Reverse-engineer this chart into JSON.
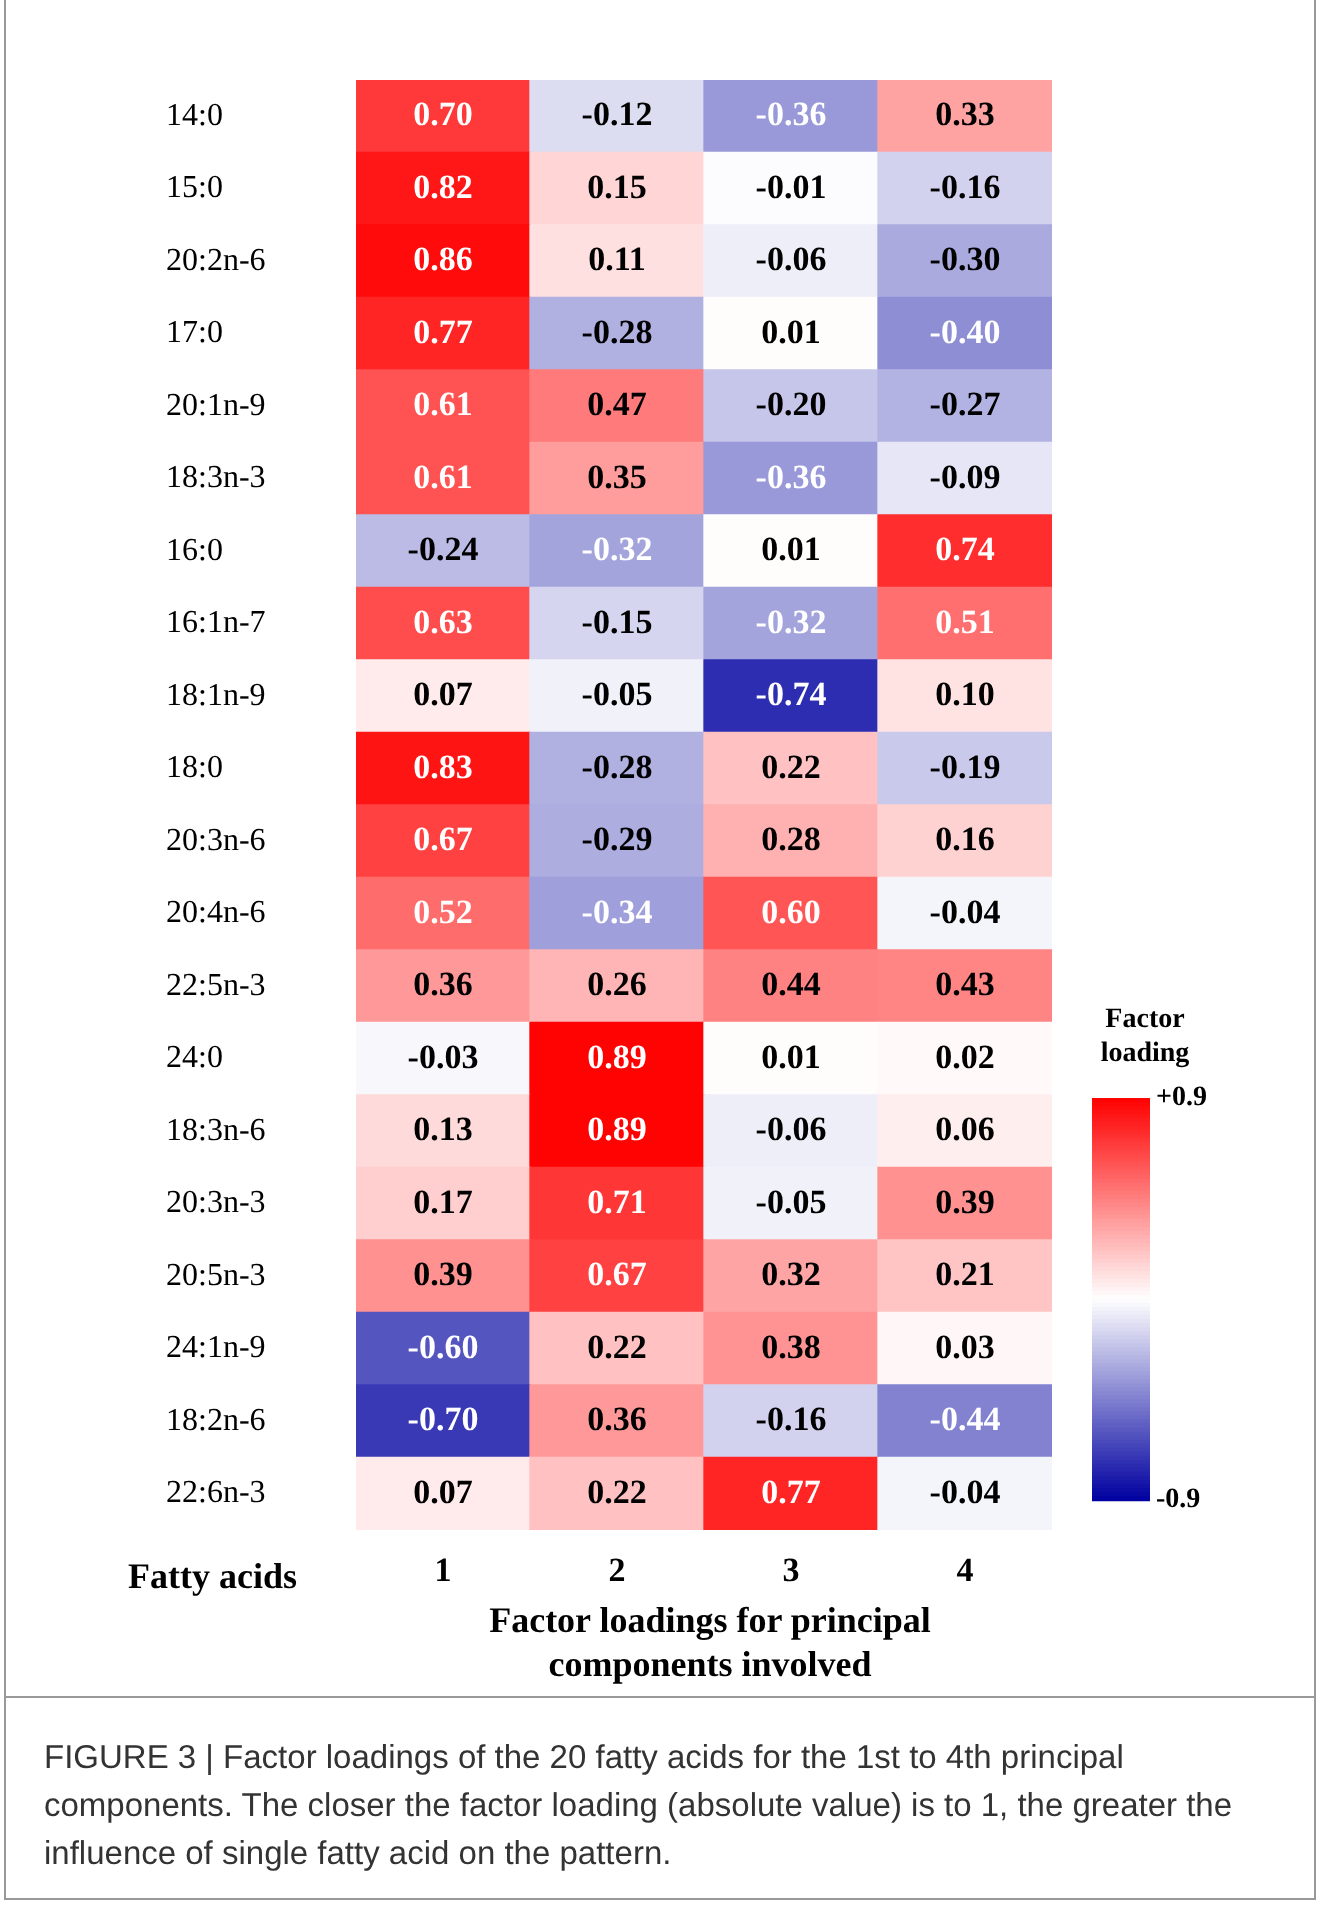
{
  "chart_data": {
    "type": "heatmap",
    "categories": [
      "1",
      "2",
      "3",
      "4"
    ],
    "y_categories": [
      "14:0",
      "15:0",
      "20:2n-6",
      "17:0",
      "20:1n-9",
      "18:3n-3",
      "16:0",
      "16:1n-7",
      "18:1n-9",
      "18:0",
      "20:3n-6",
      "20:4n-6",
      "22:5n-3",
      "24:0",
      "18:3n-6",
      "20:3n-3",
      "20:5n-3",
      "24:1n-9",
      "18:2n-6",
      "22:6n-3"
    ],
    "cells": [
      [
        0.7,
        -0.12,
        -0.36,
        0.33
      ],
      [
        0.82,
        0.15,
        -0.01,
        -0.16
      ],
      [
        0.86,
        0.11,
        -0.06,
        -0.3
      ],
      [
        0.77,
        -0.28,
        0.01,
        -0.4
      ],
      [
        0.61,
        0.47,
        -0.2,
        -0.27
      ],
      [
        0.61,
        0.35,
        -0.36,
        -0.09
      ],
      [
        -0.24,
        -0.32,
        0.01,
        0.74
      ],
      [
        0.63,
        -0.15,
        -0.32,
        0.51
      ],
      [
        0.07,
        -0.05,
        -0.74,
        0.1
      ],
      [
        0.83,
        -0.28,
        0.22,
        -0.19
      ],
      [
        0.67,
        -0.29,
        0.28,
        0.16
      ],
      [
        0.52,
        -0.34,
        0.6,
        -0.04
      ],
      [
        0.36,
        0.26,
        0.44,
        0.43
      ],
      [
        -0.03,
        0.89,
        0.01,
        0.02
      ],
      [
        0.13,
        0.89,
        -0.06,
        0.06
      ],
      [
        0.17,
        0.71,
        -0.05,
        0.39
      ],
      [
        0.39,
        0.67,
        0.32,
        0.21
      ],
      [
        -0.6,
        0.22,
        0.38,
        0.03
      ],
      [
        -0.7,
        0.36,
        -0.16,
        -0.44
      ],
      [
        0.07,
        0.22,
        0.77,
        -0.04
      ]
    ],
    "cell_labels": [
      [
        "0.70",
        "-0.12",
        "-0.36",
        "0.33"
      ],
      [
        "0.82",
        "0.15",
        "-0.01",
        "-0.16"
      ],
      [
        "0.86",
        "0.11",
        "-0.06",
        "-0.30"
      ],
      [
        "0.77",
        "-0.28",
        "0.01",
        "-0.40"
      ],
      [
        "0.61",
        "0.47",
        "-0.20",
        "-0.27"
      ],
      [
        "0.61",
        "0.35",
        "-0.36",
        "-0.09"
      ],
      [
        "-0.24",
        "-0.32",
        "0.01",
        "0.74"
      ],
      [
        "0.63",
        "-0.15",
        "-0.32",
        "0.51"
      ],
      [
        "0.07",
        "-0.05",
        "-0.74",
        "0.10"
      ],
      [
        "0.83",
        "-0.28",
        "0.22",
        "-0.19"
      ],
      [
        "0.67",
        "-0.29",
        "0.28",
        "0.16"
      ],
      [
        "0.52",
        "-0.34",
        "0.60",
        "-0.04"
      ],
      [
        "0.36",
        "0.26",
        "0.44",
        "0.43"
      ],
      [
        "-0.03",
        "0.89",
        "0.01",
        "0.02"
      ],
      [
        "0.13",
        "0.89",
        "-0.06",
        "0.06"
      ],
      [
        "0.17",
        "0.71",
        "-0.05",
        "0.39"
      ],
      [
        "0.39",
        "0.67",
        "0.32",
        "0.21"
      ],
      [
        "-0.60",
        "0.22",
        "0.38",
        "0.03"
      ],
      [
        "-0.70",
        "0.36",
        "-0.16",
        "-0.44"
      ],
      [
        "0.07",
        "0.22",
        "0.77",
        "-0.04"
      ]
    ],
    "clim": [
      -0.9,
      0.9
    ],
    "cticks": [
      {
        "value": 0.9,
        "label": "+0.9"
      },
      -0.9
    ],
    "clabel": "Factor loading",
    "xlabel": "Factor loadings for principal components involved",
    "ylabel": "Fatty acids",
    "annotations": [
      "FIGURE 3 | Factor loadings of the 20 fatty acids for the 1st to 4th principal components. The closer the factor loading (absolute value) is to 1, the greater the influence of single fatty acid on the pattern."
    ]
  }
}
